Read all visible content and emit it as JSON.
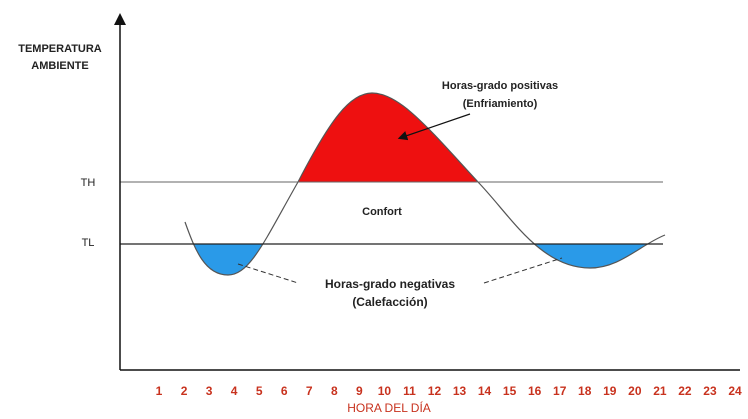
{
  "y_axis_label": {
    "line1": "TEMPERATURA",
    "line2": "AMBIENTE"
  },
  "levels": {
    "high": "TH",
    "low": "TL"
  },
  "zone_label": "Confort",
  "positive": {
    "line1": "Horas-grado positivas",
    "line2": "(Enfriamiento)"
  },
  "negative": {
    "line1": "Horas-grado negativas",
    "line2": "(Calefacción)"
  },
  "x_axis": {
    "labels": [
      "1",
      "2",
      "3",
      "4",
      "5",
      "6",
      "7",
      "8",
      "9",
      "10",
      "11",
      "12",
      "13",
      "14",
      "15",
      "16",
      "17",
      "18",
      "19",
      "20",
      "21",
      "22",
      "23",
      "24"
    ],
    "title": "HORA DEL DÍA"
  }
}
